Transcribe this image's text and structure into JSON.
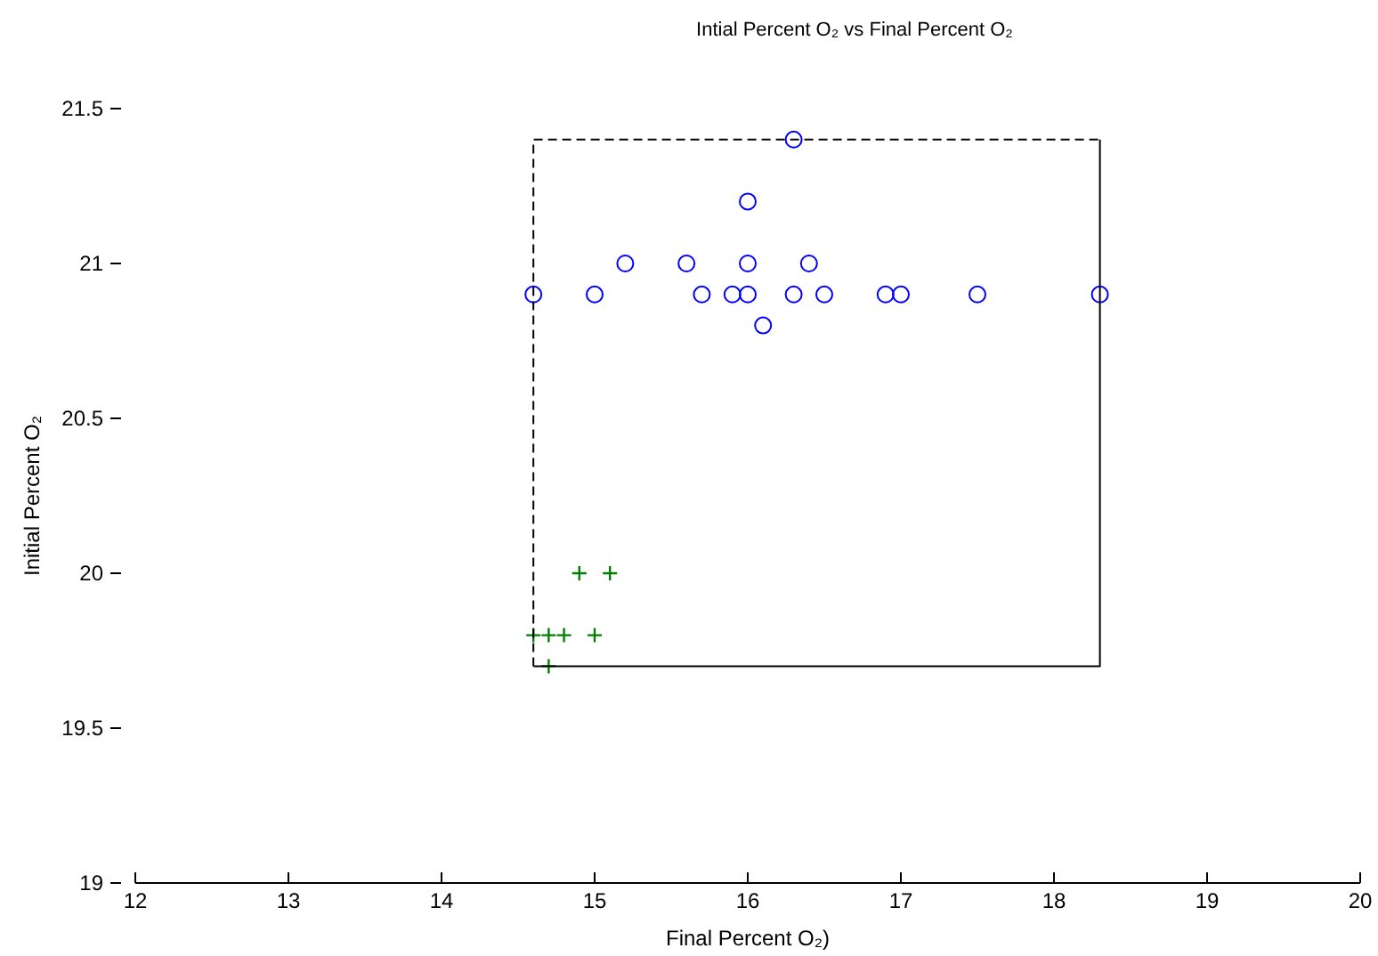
{
  "chart_data": {
    "type": "scatter",
    "title": "Intial Percent O₂ vs Final Percent O₂",
    "xlabel": "Final Percent O₂)",
    "ylabel": "Initial Percent O₂",
    "series": [
      {
        "color": "#0000ff",
        "marker": "circle",
        "x": [
          14.6,
          15.0,
          15.7,
          15.9,
          16.0,
          16.3,
          16.5,
          16.9,
          17.0,
          17.5,
          18.3,
          15.2,
          15.6,
          16.0,
          16.4,
          16.1,
          16.0,
          16.3
        ],
        "values": [
          20.9,
          20.9,
          20.9,
          20.9,
          20.9,
          20.9,
          20.9,
          20.9,
          20.9,
          20.9,
          20.9,
          21.0,
          21.0,
          21.0,
          21.0,
          20.8,
          21.2,
          21.4
        ]
      },
      {
        "color": "#008000",
        "marker": "cross",
        "x": [
          14.9,
          15.1,
          14.6,
          14.7,
          14.8,
          15.0,
          14.7
        ],
        "values": [
          20.0,
          20.0,
          19.8,
          19.8,
          19.8,
          19.8,
          19.7
        ]
      },
      {
        "type": "line",
        "color": "#000000",
        "marker": "none",
        "line_style": "dashed",
        "x": [
          14.6,
          14.6,
          18.3
        ],
        "values": [
          19.7,
          21.4,
          21.4
        ]
      },
      {
        "type": "line",
        "color": "#000000",
        "marker": "none",
        "line_style": "solid",
        "x": [
          18.3,
          18.3,
          14.6
        ],
        "values": [
          21.4,
          19.7,
          19.7
        ]
      }
    ],
    "xlim": [
      12,
      20
    ],
    "ylim": [
      19,
      21.5
    ],
    "xticks": [
      12,
      13,
      14,
      15,
      16,
      17,
      18,
      19,
      20
    ],
    "yticks": [
      19,
      19.5,
      20,
      20.5,
      21,
      21.5
    ],
    "grid": false
  }
}
